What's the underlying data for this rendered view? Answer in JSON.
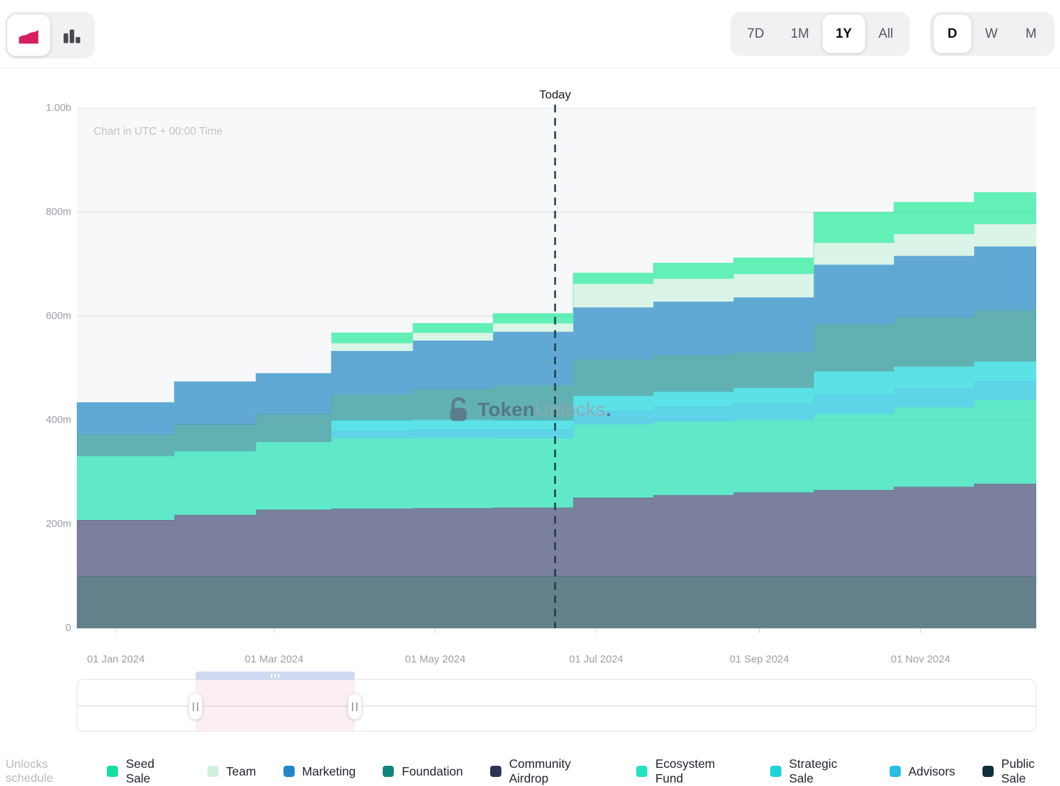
{
  "toolbar": {
    "chart_toggle": {
      "area_icon_color": "#d4205c",
      "bar_icon_color": "#46484c"
    },
    "range_options": [
      "7D",
      "1M",
      "1Y",
      "All"
    ],
    "range_selected": "1Y",
    "granularity_options": [
      "D",
      "W",
      "M"
    ],
    "granularity_selected": "D"
  },
  "chart": {
    "utc_note": "Chart in UTC + 00:00 Time",
    "today_label": "Today",
    "watermark": {
      "bold": "Token",
      "light": "Unlocks",
      "dot": "."
    }
  },
  "chart_data": {
    "type": "area",
    "subtype": "stacked-step-area",
    "title": "Token unlocks schedule over time",
    "grid": true,
    "today_fraction": 0.4985,
    "x_axis": {
      "ticks": [
        {
          "label": "01 Jan 2024",
          "f": 0.0407
        },
        {
          "label": "01 Mar 2024",
          "f": 0.2057
        },
        {
          "label": "01 May 2024",
          "f": 0.3736
        },
        {
          "label": "01 Jul 2024",
          "f": 0.5414
        },
        {
          "label": "01 Sep 2024",
          "f": 0.7114
        },
        {
          "label": "01 Nov 2024",
          "f": 0.8794
        }
      ]
    },
    "y_axis": {
      "max": 1000,
      "unit": "tokens (millions shown as m, billions as b)",
      "ticks": [
        {
          "label": "0",
          "value": 0
        },
        {
          "label": "200m",
          "value": 200
        },
        {
          "label": "400m",
          "value": 400
        },
        {
          "label": "600m",
          "value": 600
        },
        {
          "label": "800m",
          "value": 800
        },
        {
          "label": "1.00b",
          "value": 1000
        }
      ]
    },
    "step_bounds_fractions": [
      0,
      0.1017,
      0.1868,
      0.2653,
      0.3503,
      0.4339,
      0.5174,
      0.601,
      0.6846,
      0.7682,
      0.8517,
      0.9353,
      1.0
    ],
    "series": [
      {
        "name": "Public Sale",
        "color": "#0d3038",
        "fill": "#64808b",
        "values": [
          100,
          100,
          100,
          100,
          100,
          100,
          100,
          100,
          100,
          100,
          100,
          100
        ]
      },
      {
        "name": "Community Airdrop",
        "color": "#2b3157",
        "fill": "#7b809e",
        "values": [
          108,
          118,
          128,
          130,
          131,
          132,
          151,
          156,
          161,
          166,
          172,
          178
        ]
      },
      {
        "name": "Ecosystem Fund",
        "color": "#25e3bd",
        "fill": "#5fe9c9",
        "values": [
          123,
          122,
          130,
          135,
          135,
          133,
          141,
          141,
          140,
          146,
          153,
          161
        ]
      },
      {
        "name": "Advisors",
        "color": "#28bfe0",
        "fill": "#5fd4e8",
        "values": [
          0,
          0,
          0,
          15,
          16,
          17,
          27,
          30,
          32,
          38,
          37,
          36
        ]
      },
      {
        "name": "Strategic Sale",
        "color": "#1fd2dc",
        "fill": "#5be2e6",
        "values": [
          0,
          0,
          0,
          20,
          19,
          18,
          28,
          28,
          29,
          44,
          41,
          38
        ]
      },
      {
        "name": "Foundation",
        "color": "#11857d",
        "fill": "#61b1b3",
        "values": [
          41,
          52,
          54,
          50,
          59,
          67,
          70,
          70,
          69,
          90,
          94,
          98
        ]
      },
      {
        "name": "Marketing",
        "color": "#2187c9",
        "fill": "#61a9d5",
        "values": [
          62,
          82,
          78,
          83,
          93,
          103,
          100,
          103,
          105,
          115,
          119,
          123
        ]
      },
      {
        "name": "Team",
        "color": "#cff0de",
        "fill": "#daf4e8",
        "values": [
          0,
          0,
          0,
          15,
          15,
          16,
          45,
          44,
          45,
          42,
          42,
          43
        ]
      },
      {
        "name": "Seed Sale",
        "color": "#12dfa0",
        "fill": "#63f0b6",
        "values": [
          0,
          0,
          0,
          20,
          18,
          19,
          21,
          30,
          31,
          59,
          61,
          61
        ]
      }
    ],
    "stacked_totals": [
      434,
      474,
      490,
      568,
      586,
      605,
      683,
      702,
      712,
      800,
      819,
      838
    ]
  },
  "legend": {
    "title": "Unlocks schedule",
    "items": [
      {
        "label": "Seed Sale",
        "color": "#12dfa0"
      },
      {
        "label": "Team",
        "color": "#cff0de"
      },
      {
        "label": "Marketing",
        "color": "#2187c9"
      },
      {
        "label": "Foundation",
        "color": "#11857d"
      },
      {
        "label": "Community Airdrop",
        "color": "#2b3157"
      },
      {
        "label": "Ecosystem Fund",
        "color": "#25e3bd"
      },
      {
        "label": "Strategic Sale",
        "color": "#1fd2dc"
      },
      {
        "label": "Advisors",
        "color": "#28bfe0"
      },
      {
        "label": "Public Sale",
        "color": "#0d3038"
      }
    ]
  }
}
